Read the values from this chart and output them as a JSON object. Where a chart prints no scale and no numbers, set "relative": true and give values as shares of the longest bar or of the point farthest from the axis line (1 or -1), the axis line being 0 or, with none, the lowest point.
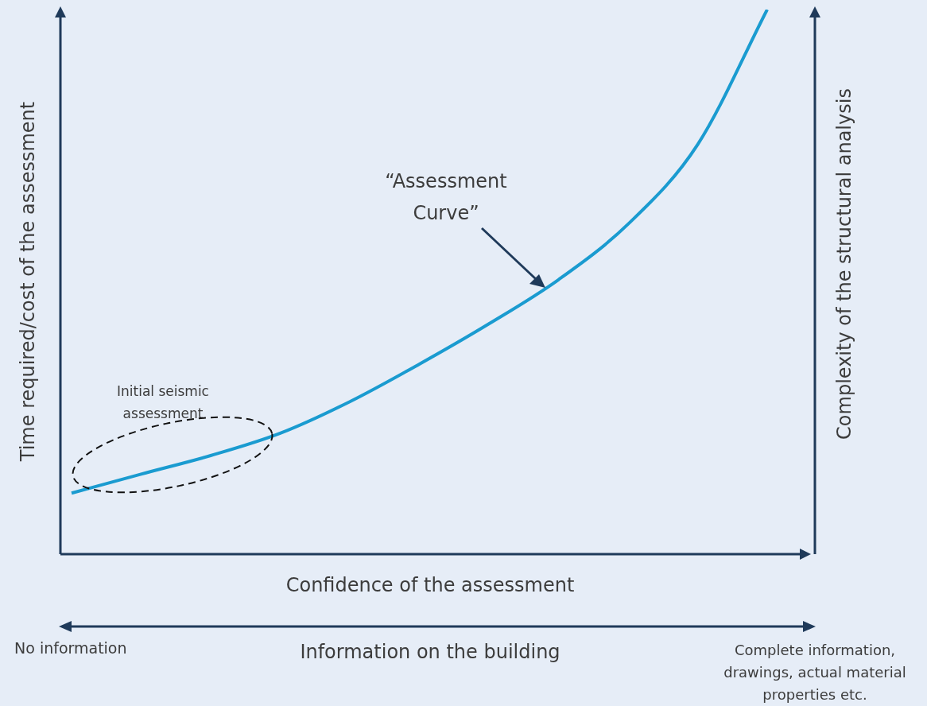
{
  "chart_data": {
    "type": "line",
    "relative": true,
    "marker": "none",
    "line_style": "solid",
    "xlabel": "Confidence of the assessment",
    "ylabel": "Time required/cost of the assessment",
    "y2label": "Complexity of the structural analysis",
    "categories": [
      null,
      null,
      null,
      null,
      null,
      null,
      null,
      null,
      null,
      null,
      null
    ],
    "series": [
      {
        "color": "#1a9bd0",
        "values": [
          0.112,
          0.147,
          0.181,
          0.222,
          0.28,
          0.349,
          0.423,
          0.504,
          0.606,
          0.752,
          1.0
        ]
      }
    ],
    "annotations": [
      "“Assessment Curve”",
      "Initial seismic assessment",
      "No information",
      "Information on the building",
      "Complete information, drawings, actual material properties etc."
    ]
  }
}
